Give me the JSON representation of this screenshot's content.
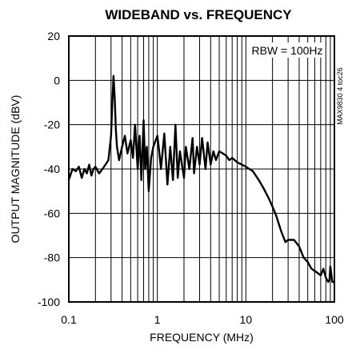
{
  "chart_data": {
    "type": "line",
    "title": "WIDEBAND vs. FREQUENCY",
    "xlabel": "FREQUENCY (MHz)",
    "ylabel": "OUTPUT MAGNITUDE (dBV)",
    "x_scale": "log",
    "xlim": [
      0.1,
      100
    ],
    "ylim": [
      -100,
      20
    ],
    "x_ticks": [
      {
        "value": 0.1,
        "label": "0.1"
      },
      {
        "value": 1,
        "label": "1"
      },
      {
        "value": 10,
        "label": "10"
      },
      {
        "value": 100,
        "label": "100"
      }
    ],
    "y_ticks": [
      {
        "value": 20,
        "label": "20"
      },
      {
        "value": 0,
        "label": "0"
      },
      {
        "value": -20,
        "label": "-20"
      },
      {
        "value": -40,
        "label": "-40"
      },
      {
        "value": -60,
        "label": "-60"
      },
      {
        "value": -80,
        "label": "-80"
      },
      {
        "value": -100,
        "label": "-100"
      }
    ],
    "grid": true,
    "annotations": [
      "RBW = 100Hz"
    ],
    "figure_code": "MAX9830 4 toc26",
    "series": [
      {
        "x": [
          0.1,
          0.11,
          0.12,
          0.13,
          0.14,
          0.15,
          0.16,
          0.17,
          0.18,
          0.19,
          0.2,
          0.22,
          0.24,
          0.26,
          0.28,
          0.3,
          0.31,
          0.32,
          0.33,
          0.34,
          0.35,
          0.37,
          0.4,
          0.43,
          0.46,
          0.5,
          0.53,
          0.56,
          0.6,
          0.63,
          0.66,
          0.7,
          0.73,
          0.76,
          0.8,
          0.85,
          0.9,
          1.0,
          1.05,
          1.1,
          1.2,
          1.3,
          1.4,
          1.5,
          1.6,
          1.7,
          1.8,
          2.0,
          2.1,
          2.3,
          2.5,
          2.6,
          2.8,
          3.0,
          3.2,
          3.5,
          3.7,
          4.0,
          4.3,
          4.6,
          5.0,
          5.5,
          6.0,
          6.5,
          7.0,
          8.0,
          9.0,
          10,
          12,
          14,
          16,
          18,
          20,
          22,
          25,
          28,
          30,
          35,
          40,
          45,
          50,
          55,
          60,
          65,
          70,
          75,
          80,
          85,
          88,
          90,
          95,
          100
        ],
        "y": [
          -45,
          -40,
          -41,
          -39,
          -44,
          -40,
          -42,
          -38,
          -43,
          -40,
          -39,
          -42,
          -40,
          -38,
          -36,
          -25,
          -10,
          2,
          -8,
          -22,
          -30,
          -36,
          -30,
          -25,
          -33,
          -27,
          -35,
          -20,
          -40,
          -25,
          -45,
          -18,
          -40,
          -30,
          -50,
          -35,
          -30,
          -25,
          -32,
          -40,
          -24,
          -47,
          -30,
          -45,
          -20,
          -44,
          -32,
          -44,
          -30,
          -40,
          -26,
          -42,
          -30,
          -38,
          -26,
          -40,
          -28,
          -38,
          -32,
          -36,
          -32,
          -33,
          -34,
          -36,
          -35,
          -37,
          -38,
          -39,
          -41,
          -45,
          -49,
          -53,
          -57,
          -61,
          -68,
          -73,
          -72,
          -72,
          -75,
          -80,
          -82,
          -85,
          -86,
          -87,
          -88,
          -85,
          -89,
          -91,
          -90,
          -84,
          -91,
          -91
        ]
      }
    ]
  }
}
